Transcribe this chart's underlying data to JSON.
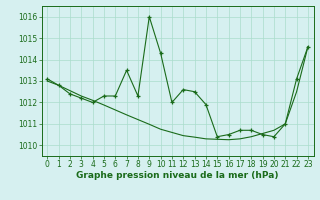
{
  "x": [
    0,
    1,
    2,
    3,
    4,
    5,
    6,
    7,
    8,
    9,
    10,
    11,
    12,
    13,
    14,
    15,
    16,
    17,
    18,
    19,
    20,
    21,
    22,
    23
  ],
  "y_actual": [
    1013.1,
    1012.8,
    1012.4,
    1012.2,
    1012.0,
    1012.3,
    1012.3,
    1013.5,
    1012.3,
    1016.0,
    1014.3,
    1012.0,
    1012.6,
    1012.5,
    1011.9,
    1010.4,
    1010.5,
    1010.7,
    1010.7,
    1010.5,
    1010.4,
    1011.0,
    1013.1,
    1014.6
  ],
  "y_trend": [
    1013.0,
    1012.8,
    1012.55,
    1012.3,
    1012.1,
    1011.88,
    1011.65,
    1011.42,
    1011.2,
    1010.98,
    1010.75,
    1010.6,
    1010.45,
    1010.38,
    1010.3,
    1010.28,
    1010.26,
    1010.3,
    1010.4,
    1010.55,
    1010.7,
    1011.0,
    1012.5,
    1014.6
  ],
  "line_color": "#1a6b1a",
  "bg_color": "#d6f0f0",
  "grid_color": "#aaddcc",
  "xlabel": "Graphe pression niveau de la mer (hPa)",
  "ylim": [
    1009.5,
    1016.5
  ],
  "xlim": [
    -0.5,
    23.5
  ],
  "yticks": [
    1010,
    1011,
    1012,
    1013,
    1014,
    1015,
    1016
  ],
  "xticks": [
    0,
    1,
    2,
    3,
    4,
    5,
    6,
    7,
    8,
    9,
    10,
    11,
    12,
    13,
    14,
    15,
    16,
    17,
    18,
    19,
    20,
    21,
    22,
    23
  ],
  "tick_fontsize": 5.5,
  "xlabel_fontsize": 6.5
}
